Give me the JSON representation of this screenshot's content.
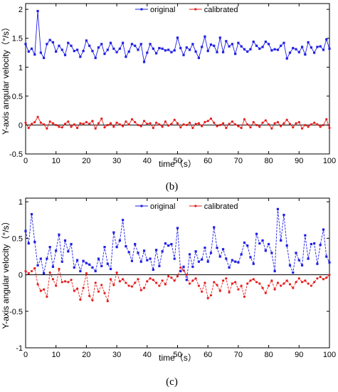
{
  "chart_data": [
    {
      "type": "line",
      "caption": "(b)",
      "xlabel": "time（s）",
      "ylabel": "Y-axis angular velocity（°/s）",
      "xlim": [
        0,
        100
      ],
      "ylim": [
        -0.5,
        2.1
      ],
      "xticks": [
        0,
        10,
        20,
        30,
        40,
        50,
        60,
        70,
        80,
        90,
        100
      ],
      "yticks": [
        -0.5,
        0,
        0.5,
        1,
        1.5,
        2
      ],
      "ytick_labels": [
        "-0.5",
        "0",
        "0.5",
        "1",
        "1.5",
        "2"
      ],
      "legend": {
        "position": "top-center"
      },
      "series": [
        {
          "name": "original",
          "color": "#1f1fe6",
          "marker": "square",
          "dash": false,
          "values": [
            1.4,
            1.27,
            1.32,
            1.22,
            1.97,
            1.25,
            1.16,
            1.4,
            1.47,
            1.43,
            1.27,
            1.37,
            1.3,
            1.21,
            1.42,
            1.37,
            1.28,
            1.3,
            1.18,
            1.28,
            1.46,
            1.37,
            1.28,
            1.16,
            1.34,
            1.4,
            1.23,
            1.3,
            1.42,
            1.32,
            1.26,
            1.32,
            1.42,
            1.18,
            1.27,
            1.4,
            1.37,
            1.3,
            1.4,
            1.09,
            1.25,
            1.4,
            1.32,
            1.24,
            1.33,
            1.32,
            1.29,
            1.3,
            1.26,
            1.29,
            1.51,
            1.33,
            1.21,
            1.34,
            1.3,
            1.4,
            1.27,
            1.16,
            1.35,
            1.53,
            1.28,
            1.39,
            1.37,
            1.26,
            1.51,
            1.26,
            1.45,
            1.36,
            1.4,
            1.23,
            1.42,
            1.36,
            1.31,
            1.27,
            1.31,
            1.44,
            1.37,
            1.32,
            1.35,
            1.44,
            1.4,
            1.29,
            1.31,
            1.3,
            1.37,
            1.42,
            1.15,
            1.25,
            1.33,
            1.31,
            1.26,
            1.35,
            1.22,
            1.43,
            1.34,
            1.25,
            1.35,
            1.36,
            1.3,
            1.48,
            1.32
          ]
        },
        {
          "name": "calibrated",
          "color": "#e61e1e",
          "marker": "circle",
          "dash": false,
          "values": [
            0.04,
            -0.05,
            0.02,
            0.05,
            0.14,
            0.04,
            0.01,
            -0.06,
            0.06,
            0.03,
            0.0,
            -0.03,
            -0.04,
            0.02,
            0.06,
            -0.03,
            0.01,
            -0.05,
            0.03,
            0.02,
            0.05,
            0.02,
            0.07,
            -0.06,
            0.03,
            0.11,
            -0.04,
            0.0,
            0.03,
            -0.03,
            0.04,
            0.01,
            -0.02,
            0.06,
            0.01,
            0.1,
            0.05,
            0.0,
            -0.02,
            0.07,
            0.02,
            0.03,
            -0.05,
            0.04,
            0.01,
            -0.03,
            0.06,
            -0.01,
            0.02,
            0.09,
            0.03,
            -0.04,
            0.01,
            0.0,
            0.04,
            -0.05,
            0.02,
            0.03,
            -0.02,
            0.05,
            0.07,
            0.11,
            0.04,
            -0.02,
            0.0,
            0.03,
            -0.05,
            0.02,
            0.06,
            0.01,
            -0.02,
            -0.05,
            0.1,
            0.01,
            -0.04,
            0.05,
            0.0,
            -0.03,
            0.04,
            0.08,
            0.01,
            -0.06,
            0.03,
            0.05,
            -0.02,
            0.03,
            0.09,
            0.02,
            -0.04,
            0.03,
            0.05,
            -0.06,
            0.0,
            -0.03,
            0.01,
            0.04,
            0.01,
            -0.03,
            0.0,
            0.1,
            -0.05
          ]
        }
      ]
    },
    {
      "type": "line",
      "caption": "(c)",
      "xlabel": "time（s）",
      "ylabel": "Y-axis angular velocity（°/s）",
      "xlim": [
        0,
        100
      ],
      "ylim": [
        -1,
        1.05
      ],
      "xticks": [
        0,
        10,
        20,
        30,
        40,
        50,
        60,
        70,
        80,
        90,
        100
      ],
      "yticks": [
        -1,
        -0.5,
        0,
        0.5,
        1
      ],
      "ytick_labels": [
        "-1",
        "-0.5",
        "0",
        "0.5",
        "1"
      ],
      "legend": {
        "position": "top-center"
      },
      "series": [
        {
          "name": "original",
          "color": "#1f1fe6",
          "marker": "square",
          "dash": true,
          "values": [
            0.6,
            0.43,
            0.83,
            0.45,
            0.13,
            0.22,
            0.02,
            0.22,
            0.38,
            0.11,
            0.33,
            0.55,
            0.18,
            0.47,
            0.32,
            0.42,
            0.1,
            0.2,
            0.05,
            0.19,
            0.16,
            0.14,
            0.1,
            0.05,
            0.22,
            0.12,
            0.38,
            0.15,
            0.08,
            0.58,
            0.38,
            0.47,
            0.75,
            0.39,
            0.31,
            0.19,
            0.42,
            0.3,
            0.18,
            0.33,
            0.2,
            0.22,
            0.07,
            0.34,
            0.12,
            0.32,
            0.43,
            0.4,
            0.42,
            0.22,
            0.64,
            0.05,
            0.11,
            -0.07,
            0.28,
            0.11,
            0.32,
            0.18,
            0.21,
            0.37,
            0.18,
            0.3,
            0.65,
            0.37,
            0.25,
            0.35,
            0.22,
            0.1,
            0.2,
            0.18,
            0.17,
            0.28,
            0.44,
            0.4,
            0.24,
            0.15,
            0.56,
            0.43,
            0.47,
            0.33,
            0.42,
            0.3,
            0.05,
            0.9,
            0.47,
            0.82,
            0.4,
            0.13,
            0.03,
            0.3,
            0.2,
            0.13,
            0.54,
            0.22,
            0.42,
            0.43,
            0.15,
            0.41,
            0.62,
            0.25,
            0.17
          ]
        },
        {
          "name": "calibrated",
          "color": "#e61e1e",
          "marker": "circle",
          "dash": true,
          "values": [
            0.05,
            0.02,
            0.05,
            0.09,
            -0.13,
            -0.22,
            -0.2,
            -0.3,
            0.03,
            -0.06,
            -0.15,
            0.08,
            -0.1,
            -0.09,
            -0.1,
            -0.07,
            -0.22,
            -0.19,
            -0.34,
            -0.18,
            0.02,
            -0.29,
            -0.35,
            -0.11,
            -0.23,
            -0.14,
            -0.25,
            -0.36,
            -0.06,
            -0.14,
            0.03,
            -0.09,
            -0.06,
            -0.11,
            -0.15,
            -0.16,
            -0.11,
            -0.06,
            -0.21,
            -0.18,
            -0.09,
            -0.05,
            -0.07,
            -0.11,
            -0.15,
            -0.08,
            -0.13,
            -0.02,
            -0.04,
            -0.08,
            -0.02,
            0.1,
            0.06,
            0.0,
            -0.12,
            -0.08,
            -0.05,
            -0.15,
            -0.23,
            -0.11,
            -0.32,
            -0.28,
            -0.1,
            -0.14,
            -0.22,
            -0.08,
            -0.05,
            -0.24,
            -0.12,
            -0.1,
            -0.2,
            -0.15,
            -0.3,
            -0.12,
            -0.08,
            -0.06,
            -0.1,
            -0.12,
            -0.18,
            -0.25,
            -0.15,
            -0.08,
            -0.2,
            -0.11,
            -0.15,
            -0.12,
            -0.08,
            -0.13,
            -0.18,
            -0.1,
            -0.05,
            -0.1,
            -0.08,
            -0.12,
            -0.15,
            -0.1,
            -0.05,
            -0.03,
            -0.06,
            -0.04,
            0.0
          ]
        }
      ]
    }
  ]
}
